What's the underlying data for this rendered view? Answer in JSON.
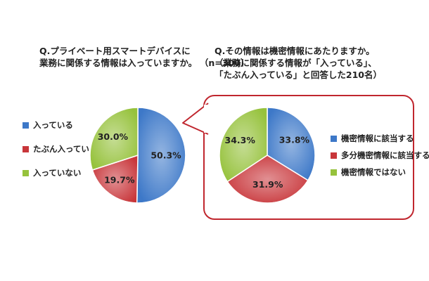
{
  "chart_data": [
    {
      "type": "pie",
      "title_lines": [
        "Q.プライベート用スマートデバイスに",
        "業務に関係する情報は入っていますか。"
      ],
      "n_label": "（n=300）",
      "categories": [
        "入っている",
        "たぶん入っている",
        "入っていない"
      ],
      "values": [
        50.3,
        19.7,
        30.0
      ],
      "value_labels": [
        "50.3%",
        "19.7%",
        "30.0%"
      ],
      "colors": [
        "#3d78c8",
        "#c8363a",
        "#96c23c"
      ],
      "legend_position": "left"
    },
    {
      "type": "pie",
      "title_lines": [
        "Q.その情報は機密情報にあたりますか。",
        "（業務に関係する情報が「入っている」、",
        "「たぶん入っている」と回答した210名）"
      ],
      "categories": [
        "機密情報に該当する",
        "多分機密情報に該当する",
        "機密情報ではない"
      ],
      "values": [
        33.8,
        31.9,
        34.3
      ],
      "value_labels": [
        "33.8%",
        "31.9%",
        "34.3%"
      ],
      "colors": [
        "#3d78c8",
        "#c8363a",
        "#96c23c"
      ],
      "legend_position": "right"
    }
  ]
}
